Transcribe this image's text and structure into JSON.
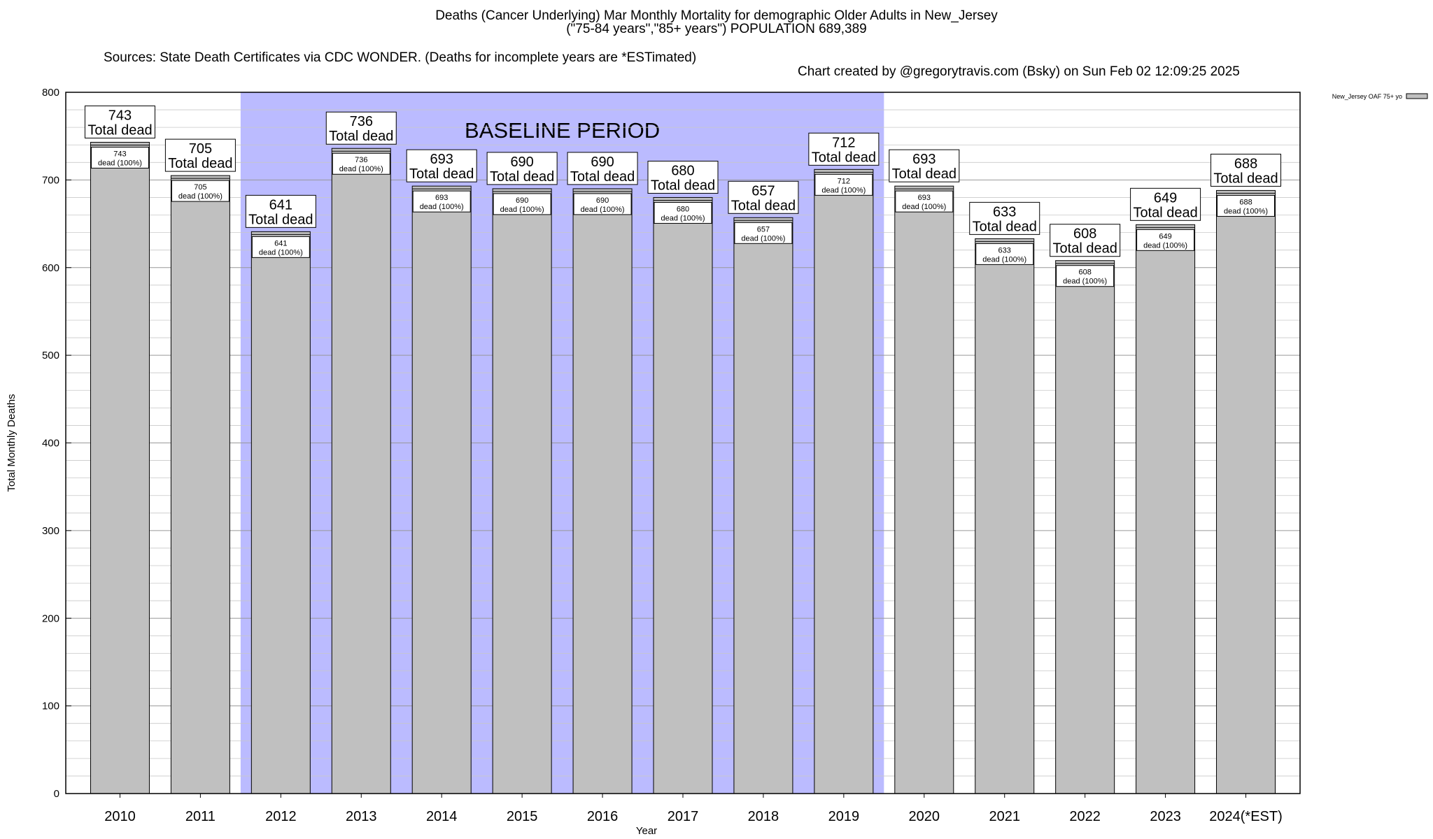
{
  "header": {
    "title_line1": "Deaths (Cancer Underlying) Mar Monthly Mortality for demographic Older Adults in New_Jersey",
    "title_line2": "(\"75-84 years\",\"85+ years\") POPULATION 689,389",
    "sources": "Sources: State Death Certificates via CDC WONDER. (Deaths for incomplete years are *ESTimated)",
    "credit": "Chart created by @gregorytravis.com (Bsky) on Sun Feb 02 12:09:25 2025"
  },
  "chart_data": {
    "type": "bar",
    "categories": [
      "2010",
      "2011",
      "2012",
      "2013",
      "2014",
      "2015",
      "2016",
      "2017",
      "2018",
      "2019",
      "2020",
      "2021",
      "2022",
      "2023",
      "2024(*EST)"
    ],
    "series": [
      {
        "name": "New_Jersey OAF 75+ yo",
        "values": [
          743,
          705,
          641,
          736,
          693,
          690,
          690,
          680,
          657,
          712,
          693,
          633,
          608,
          649,
          688
        ]
      }
    ],
    "xlabel": "Year",
    "ylabel": "Total Monthly Deaths",
    "ylim": [
      0,
      800
    ],
    "yticks": [
      0,
      100,
      200,
      300,
      400,
      500,
      600,
      700,
      800
    ],
    "minor_grid_step": 20,
    "grid": true,
    "legend": "top-right",
    "bar_color": "#c0c0c0",
    "band": {
      "label": "BASELINE PERIOD",
      "from": "2012",
      "to": "2019",
      "color": "#bbbbff"
    },
    "total_label_suffix": "Total dead",
    "inner_label_suffix": "dead (100%)"
  }
}
